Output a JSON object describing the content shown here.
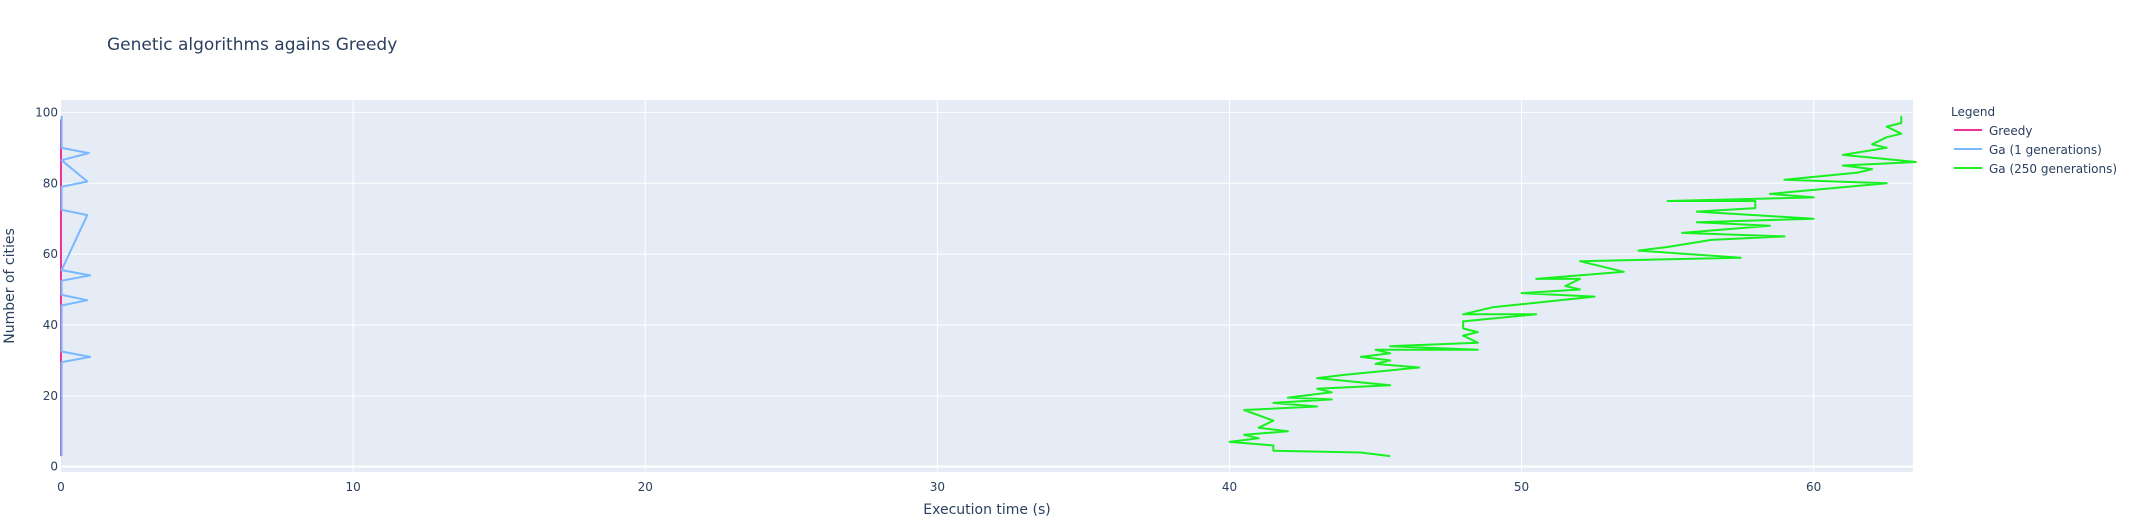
{
  "chart_data": {
    "type": "line",
    "title": "Genetic algorithms agains Greedy",
    "xlabel": "Execution time (s)",
    "ylabel": "Number of cities",
    "xlim": [
      0,
      63.4
    ],
    "ylim": [
      -1.5,
      103.5
    ],
    "x_ticks": [
      0,
      10,
      20,
      30,
      40,
      50,
      60
    ],
    "y_ticks": [
      0,
      20,
      40,
      60,
      80,
      100
    ],
    "grid": true,
    "legend_title": "Legend",
    "legend_position": "top-right",
    "colors": {
      "background": "#E5ECF6",
      "grid": "#FFFFFF",
      "text": "#2a3f5f"
    },
    "series": [
      {
        "name": "Greedy",
        "color": "#F0339B",
        "x": [
          0.0,
          0.0,
          0.0,
          0.0,
          0.0,
          0.0,
          0.0,
          0.0,
          0.0,
          0.0,
          0.0,
          0.0
        ],
        "y": [
          3,
          10,
          20,
          30,
          40,
          50,
          60,
          70,
          80,
          90,
          95,
          98
        ]
      },
      {
        "name": "Ga (1 generations)",
        "color": "#79B8FF",
        "x": [
          0.02,
          0.02,
          1.0,
          0.02,
          0.02,
          0.9,
          0.02,
          0.02,
          1.0,
          0.02,
          0.9,
          0.02,
          0.02,
          0.9,
          0.02,
          0.95,
          0.02,
          0.02
        ],
        "y": [
          3,
          29.5,
          31,
          32.5,
          45.5,
          47,
          48.5,
          52.5,
          54,
          55.5,
          71,
          72.5,
          79,
          80.5,
          86.5,
          88.5,
          90,
          99
        ]
      },
      {
        "name": "Ga (250 generations)",
        "color": "#19F021",
        "x": [
          45.5,
          44.5,
          41.5,
          41.5,
          40.0,
          41.0,
          40.5,
          42.0,
          41.0,
          41.5,
          40.5,
          43.0,
          41.5,
          43.5,
          42.0,
          43.5,
          43.0,
          45.5,
          43.0,
          44.0,
          46.5,
          45.0,
          45.5,
          44.5,
          45.5,
          45.0,
          48.5,
          45.5,
          48.5,
          48.0,
          48.5,
          48.0,
          48.0,
          50.5,
          48.0,
          49.0,
          52.5,
          50.0,
          52.0,
          51.5,
          52.0,
          50.5,
          53.5,
          52.0,
          57.5,
          54.0,
          55.0,
          56.5,
          59.0,
          55.5,
          58.5,
          56.0,
          60.0,
          56.0,
          58.0,
          58.0,
          55.0,
          60.0,
          58.5,
          62.5,
          59.0,
          61.5,
          62.0,
          61.0,
          63.5,
          61.0,
          62.5,
          62.0,
          62.5,
          63.0,
          62.5,
          63.0,
          63.0
        ],
        "y": [
          3,
          4,
          4.5,
          6,
          7,
          8,
          9,
          10,
          11,
          13,
          16,
          17,
          18,
          19,
          19.5,
          21,
          22,
          23,
          25,
          26,
          28,
          29,
          30,
          31,
          32,
          33,
          33,
          34,
          35,
          37,
          38,
          39,
          41,
          43,
          43,
          45,
          48,
          49,
          50,
          51,
          53,
          53,
          55,
          58,
          59,
          61,
          62,
          64,
          65,
          66,
          68,
          69,
          70,
          72,
          73,
          75,
          75,
          76,
          77,
          80,
          81,
          83,
          84,
          85,
          86,
          88,
          90,
          91,
          93,
          94,
          96,
          97,
          99
        ]
      }
    ]
  }
}
